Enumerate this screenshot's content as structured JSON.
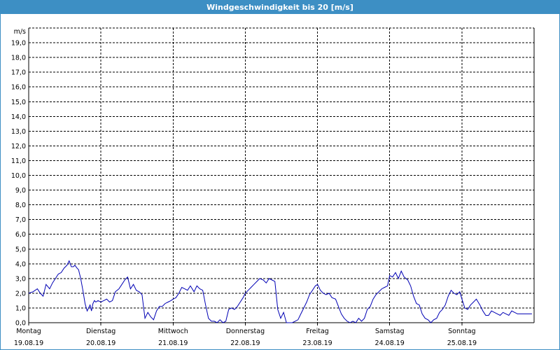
{
  "window": {
    "title": "Windgeschwindigkeit bis 20 [m/s]"
  },
  "colors": {
    "titlebar": "#3d8fc4",
    "series": "#0000b4",
    "grid": "#000000"
  },
  "chart_data": {
    "type": "line",
    "title": "Windgeschwindigkeit bis 20 [m/s]",
    "ylabel": "m/s",
    "ylim": [
      0,
      20
    ],
    "yticks": [
      "0,0",
      "1,0",
      "2,0",
      "3,0",
      "4,0",
      "5,0",
      "6,0",
      "7,0",
      "8,0",
      "9,0",
      "10,0",
      "11,0",
      "12,0",
      "13,0",
      "14,0",
      "15,0",
      "16,0",
      "17,0",
      "18,0",
      "19,0"
    ],
    "grid": true,
    "x_days": [
      {
        "day": "Montag",
        "date": "19.08.19"
      },
      {
        "day": "Dienstag",
        "date": "20.08.19"
      },
      {
        "day": "Mittwoch",
        "date": "21.08.19"
      },
      {
        "day": "Donnerstag",
        "date": "22.08.19"
      },
      {
        "day": "Freitag",
        "date": "23.08.19"
      },
      {
        "day": "Samstag",
        "date": "24.08.19"
      },
      {
        "day": "Sonntag",
        "date": "25.08.19"
      }
    ],
    "series": [
      {
        "x_unit": "days since 19.08.19 00:00",
        "x": [
          0.0,
          0.06,
          0.12,
          0.16,
          0.2,
          0.24,
          0.29,
          0.33,
          0.37,
          0.41,
          0.45,
          0.49,
          0.53,
          0.56,
          0.59,
          0.62,
          0.64,
          0.67,
          0.69,
          0.72,
          0.75,
          0.78,
          0.81,
          0.83,
          0.85,
          0.87,
          0.89,
          0.91,
          0.93,
          0.96,
          1.0,
          1.04,
          1.08,
          1.12,
          1.16,
          1.2,
          1.25,
          1.29,
          1.33,
          1.37,
          1.41,
          1.45,
          1.49,
          1.53,
          1.57,
          1.61,
          1.65,
          1.69,
          1.73,
          1.77,
          1.81,
          1.85,
          1.89,
          1.93,
          1.97,
          2.0,
          2.04,
          2.08,
          2.12,
          2.16,
          2.2,
          2.24,
          2.29,
          2.33,
          2.37,
          2.41,
          2.45,
          2.49,
          2.53,
          2.57,
          2.61,
          2.65,
          2.69,
          2.73,
          2.77,
          2.81,
          2.85,
          2.89,
          2.93,
          2.97,
          3.0,
          3.04,
          3.08,
          3.12,
          3.16,
          3.2,
          3.25,
          3.29,
          3.33,
          3.37,
          3.41,
          3.45,
          3.49,
          3.53,
          3.57,
          3.61,
          3.65,
          3.69,
          3.73,
          3.77,
          3.81,
          3.85,
          3.89,
          3.93,
          3.97,
          4.0,
          4.04,
          4.08,
          4.12,
          4.16,
          4.2,
          4.25,
          4.29,
          4.33,
          4.37,
          4.41,
          4.45,
          4.49,
          4.53,
          4.57,
          4.61,
          4.65,
          4.69,
          4.73,
          4.77,
          4.81,
          4.85,
          4.89,
          4.93,
          4.97,
          5.0,
          5.04,
          5.08,
          5.12,
          5.16,
          5.2,
          5.25,
          5.29,
          5.33,
          5.37,
          5.41,
          5.45,
          5.49,
          5.53,
          5.57,
          5.61,
          5.65,
          5.69,
          5.73,
          5.77,
          5.81,
          5.85,
          5.89,
          5.93,
          5.97,
          6.0,
          6.04,
          6.08,
          6.12,
          6.16,
          6.2,
          6.25,
          6.29,
          6.33,
          6.37,
          6.41,
          6.45,
          6.49,
          6.53,
          6.57,
          6.61,
          6.65,
          6.69,
          6.73,
          6.77,
          6.81,
          6.85,
          6.89,
          6.93,
          6.97
        ],
        "values": [
          2.0,
          2.1,
          2.3,
          2.0,
          1.8,
          2.6,
          2.3,
          2.7,
          3.0,
          3.3,
          3.4,
          3.7,
          3.9,
          4.2,
          3.8,
          3.8,
          3.9,
          3.7,
          3.6,
          3.0,
          2.2,
          1.3,
          0.8,
          1.0,
          1.2,
          0.8,
          1.3,
          1.5,
          1.4,
          1.5,
          1.4,
          1.5,
          1.6,
          1.4,
          1.5,
          2.1,
          2.3,
          2.6,
          2.9,
          3.1,
          2.3,
          2.6,
          2.2,
          2.1,
          1.9,
          0.3,
          0.7,
          0.4,
          0.2,
          0.8,
          1.1,
          1.1,
          1.3,
          1.4,
          1.5,
          1.6,
          1.7,
          2.0,
          2.4,
          2.3,
          2.2,
          2.5,
          2.1,
          2.5,
          2.3,
          2.2,
          1.2,
          0.3,
          0.1,
          0.1,
          0.0,
          0.2,
          0.0,
          0.1,
          0.9,
          1.0,
          0.9,
          1.1,
          1.4,
          1.7,
          2.0,
          2.2,
          2.4,
          2.6,
          2.8,
          3.0,
          2.9,
          2.7,
          3.0,
          2.9,
          2.8,
          0.9,
          0.3,
          0.7,
          0.0,
          0.0,
          0.0,
          0.1,
          0.2,
          0.6,
          1.0,
          1.4,
          1.9,
          2.2,
          2.5,
          2.6,
          2.2,
          2.0,
          1.9,
          2.0,
          1.7,
          1.6,
          1.1,
          0.6,
          0.3,
          0.1,
          0.0,
          0.1,
          0.0,
          0.3,
          0.1,
          0.3,
          0.9,
          1.1,
          1.6,
          1.9,
          2.1,
          2.3,
          2.4,
          2.5,
          3.2,
          3.1,
          3.4,
          3.0,
          3.5,
          3.1,
          2.9,
          2.5,
          1.8,
          1.3,
          1.2,
          0.6,
          0.3,
          0.2,
          0.0,
          0.2,
          0.3,
          0.7,
          0.9,
          1.2,
          1.8,
          2.2,
          2.0,
          1.9,
          2.1,
          1.6,
          1.0,
          0.9,
          1.2,
          1.4,
          1.6,
          1.2,
          0.8,
          0.5,
          0.5,
          0.8,
          0.7,
          0.6,
          0.5,
          0.7,
          0.6,
          0.5,
          0.8,
          0.7,
          0.6,
          0.6,
          0.6,
          0.6,
          0.6,
          0.6
        ]
      }
    ]
  }
}
